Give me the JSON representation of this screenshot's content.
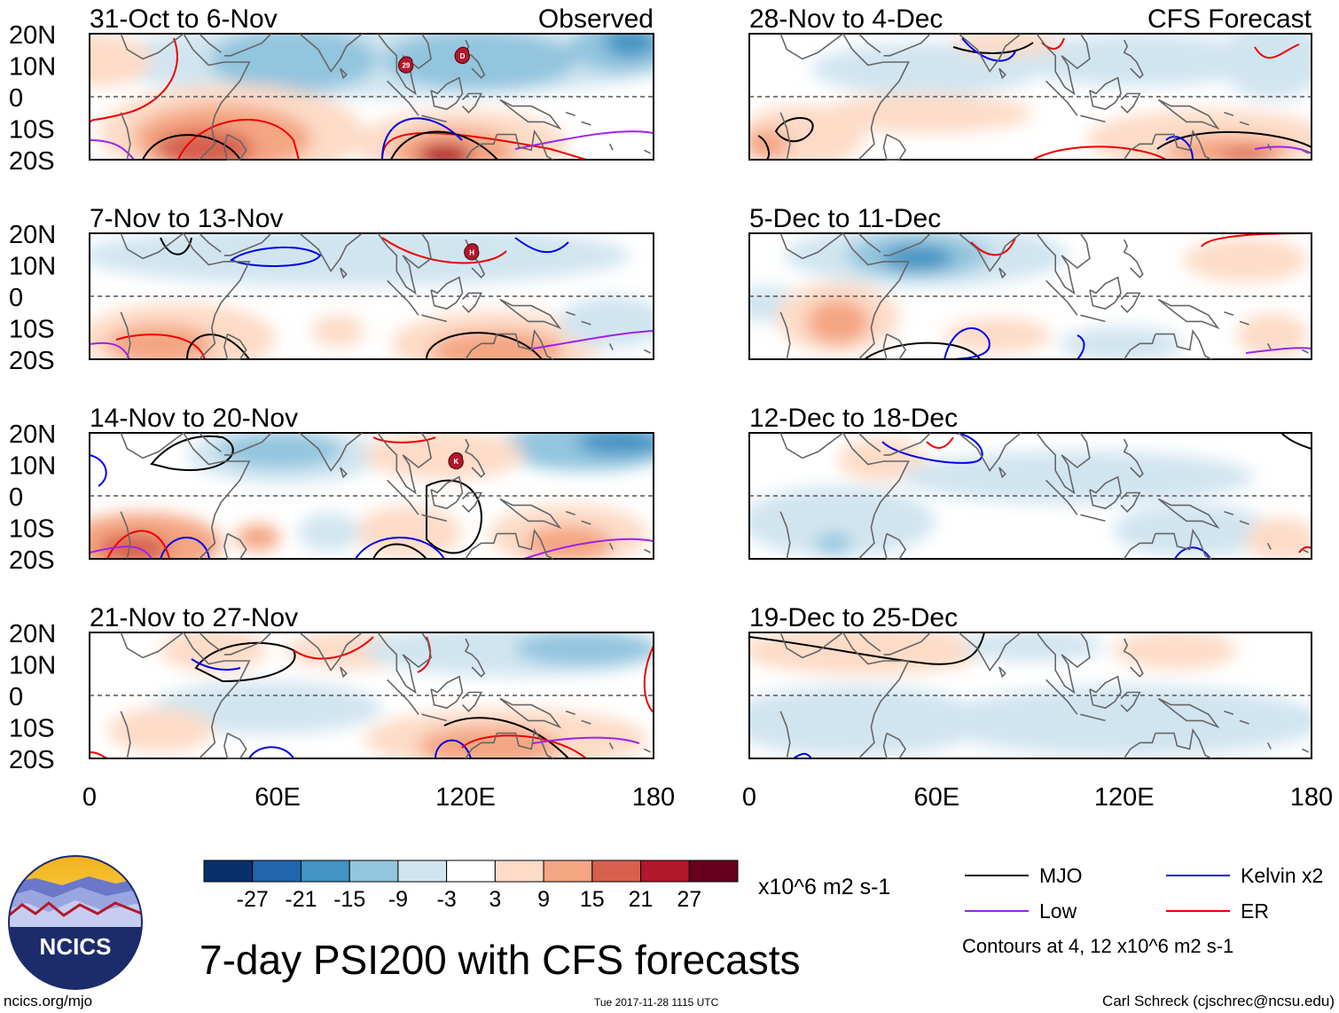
{
  "header": {
    "observed_label": "Observed",
    "forecast_label": "CFS Forecast"
  },
  "axes": {
    "lat_ticks": [
      "20N",
      "10N",
      "0",
      "10S",
      "20S"
    ],
    "lon_ticks": [
      "0",
      "60E",
      "120E",
      "180"
    ],
    "lat_range": [
      -20,
      20
    ],
    "lon_range": [
      0,
      180
    ]
  },
  "panels": [
    {
      "title": "31-Oct to 6-Nov",
      "column": "observed",
      "row": 0,
      "storms": [
        {
          "label": "29",
          "lon": 101,
          "lat": 10
        },
        {
          "label": "D",
          "lon": 119,
          "lat": 13
        }
      ]
    },
    {
      "title": "7-Nov to 13-Nov",
      "column": "observed",
      "row": 1,
      "storms": [
        {
          "label": "H",
          "lon": 122,
          "lat": 14
        }
      ]
    },
    {
      "title": "14-Nov to 20-Nov",
      "column": "observed",
      "row": 2,
      "storms": [
        {
          "label": "K",
          "lon": 117,
          "lat": 11
        }
      ]
    },
    {
      "title": "21-Nov to 27-Nov",
      "column": "observed",
      "row": 3,
      "storms": []
    },
    {
      "title": "28-Nov to 4-Dec",
      "column": "forecast",
      "row": 0,
      "storms": []
    },
    {
      "title": "5-Dec to 11-Dec",
      "column": "forecast",
      "row": 1,
      "storms": []
    },
    {
      "title": "12-Dec to 18-Dec",
      "column": "forecast",
      "row": 2,
      "storms": []
    },
    {
      "title": "19-Dec to 25-Dec",
      "column": "forecast",
      "row": 3,
      "storms": []
    }
  ],
  "colorbar": {
    "colors": [
      "#08306b",
      "#2166ac",
      "#4393c3",
      "#92c5de",
      "#d1e5f0",
      "#ffffff",
      "#fddbc7",
      "#f4a582",
      "#d6604d",
      "#b2182b",
      "#67001f"
    ],
    "labels": [
      "-27",
      "-21",
      "-15",
      "-9",
      "-3",
      "3",
      "9",
      "15",
      "21",
      "27"
    ],
    "units": "x10^6 m2 s-1"
  },
  "legend": {
    "items": [
      {
        "name": "MJO",
        "color": "#000000"
      },
      {
        "name": "Kelvin x2",
        "color": "#0000ee"
      },
      {
        "name": "Low",
        "color": "#a020f0"
      },
      {
        "name": "ER",
        "color": "#ee0000"
      }
    ],
    "contours_note": "Contours at 4, 12 x10^6 m2 s-1"
  },
  "logo": {
    "text": "NCICS"
  },
  "title": "7-day PSI200 with CFS forecasts",
  "footer": {
    "url": "ncics.org/mjo",
    "timestamp": "Tue 2017-11-28 1115 UTC",
    "author": "Carl Schreck (cjschrec@ncsu.edu)"
  }
}
